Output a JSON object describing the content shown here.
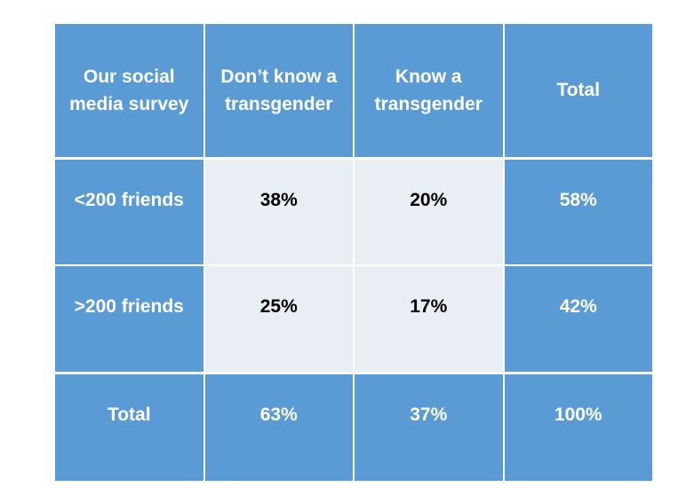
{
  "table": {
    "header": [
      "Our social media survey",
      "Don’t know a transgender",
      "Know a transgender",
      "Total"
    ],
    "rows": [
      [
        "<200 friends",
        "38%",
        "20%",
        "58%"
      ],
      [
        ">200 friends",
        "25%",
        "17%",
        "42%"
      ]
    ],
    "total_row": [
      "Total",
      "63%",
      "37%",
      "100%"
    ]
  },
  "colors": {
    "header_fill": "#5b9bd5",
    "body_fill": "#e9edf4",
    "header_text": "#ffffff",
    "body_text": "#000000"
  }
}
